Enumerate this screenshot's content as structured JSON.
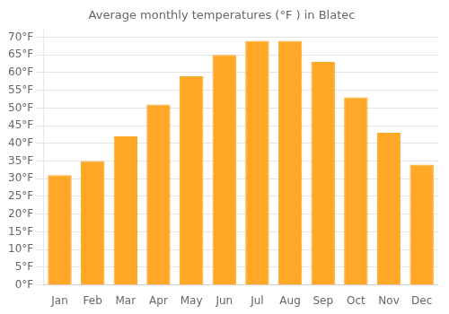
{
  "chart_data": {
    "type": "bar",
    "title": "Average monthly temperatures (°F ) in Blatec",
    "categories": [
      "Jan",
      "Feb",
      "Mar",
      "Apr",
      "May",
      "Jun",
      "Jul",
      "Aug",
      "Sep",
      "Oct",
      "Nov",
      "Dec"
    ],
    "values": [
      31,
      35,
      42,
      51,
      59,
      65,
      69,
      69,
      63,
      53,
      43,
      34
    ],
    "color": "#FFA726",
    "ylim": [
      0,
      72
    ],
    "yticks": [
      {
        "value": 0,
        "label": "0°F"
      },
      {
        "value": 5,
        "label": "5°F"
      },
      {
        "value": 10,
        "label": "10°F"
      },
      {
        "value": 15,
        "label": "15°F"
      },
      {
        "value": 20,
        "label": "20°F"
      },
      {
        "value": 25,
        "label": "25°F"
      },
      {
        "value": 30,
        "label": "30°F"
      },
      {
        "value": 35,
        "label": "35°F"
      },
      {
        "value": 40,
        "label": "40°F"
      },
      {
        "value": 45,
        "label": "45°F"
      },
      {
        "value": 50,
        "label": "50°F"
      },
      {
        "value": 55,
        "label": "55°F"
      },
      {
        "value": 60,
        "label": "60°F"
      },
      {
        "value": 65,
        "label": "65°F"
      },
      {
        "value": 70,
        "label": "70°F"
      }
    ],
    "grid": true
  }
}
